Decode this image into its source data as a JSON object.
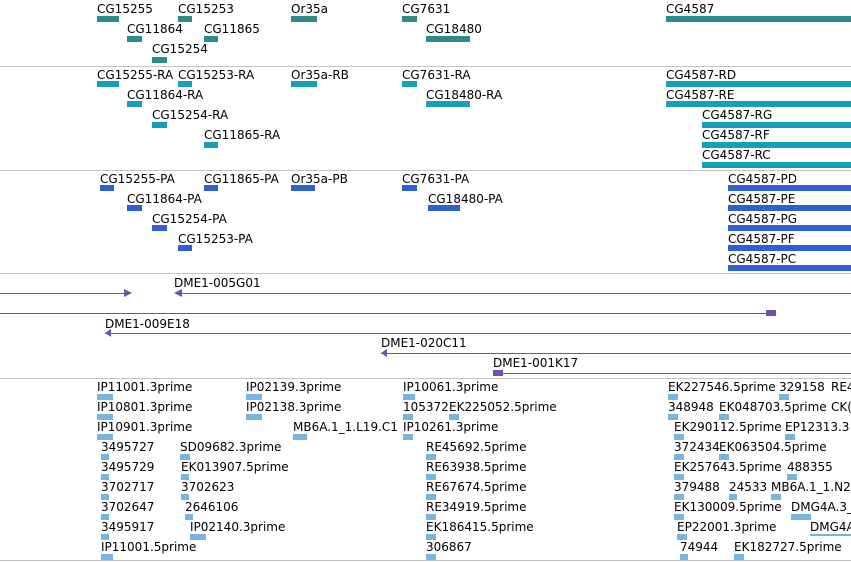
{
  "colors": {
    "gene": "#2c8c8c",
    "transcript": "#14a0b8",
    "protein": "#2f5fd6",
    "clone": "#7050b0",
    "est": "#78b4e0",
    "separator": "#c4c4c4"
  },
  "genes": [
    "CG15255",
    "CG15253",
    "Or35a",
    "CG7631",
    "CG4587",
    "CG11864",
    "CG11865",
    "CG18480",
    "CG15254"
  ],
  "transcripts": [
    "CG15255-RA",
    "CG15253-RA",
    "Or35a-RB",
    "CG7631-RA",
    "CG4587-RD",
    "CG11864-RA",
    "CG18480-RA",
    "CG4587-RE",
    "CG15254-RA",
    "CG4587-RG",
    "CG11865-RA",
    "CG4587-RF",
    "CG4587-RC"
  ],
  "proteins": [
    "CG15255-PA",
    "CG11865-PA",
    "Or35a-PB",
    "CG7631-PA",
    "CG4587-PD",
    "CG11864-PA",
    "CG18480-PA",
    "CG4587-PE",
    "CG15254-PA",
    "CG4587-PG",
    "CG15253-PA",
    "CG4587-PF",
    "CG4587-PC"
  ],
  "clones": [
    "DME1-005G01",
    "DME1-009E18",
    "DME1-020C11",
    "DME1-001K17"
  ],
  "ests": [
    "IP11001.3prime",
    "IP02139.3prime",
    "IP10061.3prime",
    "EK227546.5prime",
    "329158",
    "RE4",
    "IP10801.3prime",
    "IP02138.3prime",
    "105372",
    "EK225052.5prime",
    "348948",
    "EK048703.5prime",
    "CK(",
    "IP10901.3prime",
    "MB6A.1_1.L19.C1",
    "IP10261.3prime",
    "EK290112.5prime",
    "EP12313.3",
    "3495727",
    "SD09682.3prime",
    "RE45692.5prime",
    "372434",
    "EK063504.5prime",
    "3495729",
    "EK013907.5prime",
    "RE63938.5prime",
    "EK257643.5prime",
    "488355",
    "3702717",
    "3702623",
    "RE67674.5prime",
    "379488",
    "24533",
    "MB6A.1_1.N2",
    "3702647",
    "2646106",
    "RE34919.5prime",
    "EK130009.5prime",
    "DMG4A.3_",
    "3495917",
    "IP02140.3prime",
    "EK186415.5prime",
    "EP22001.3prime",
    "DMG4A",
    "IP11001.5prime",
    "306867",
    "74944",
    "EK182727.5prime"
  ]
}
